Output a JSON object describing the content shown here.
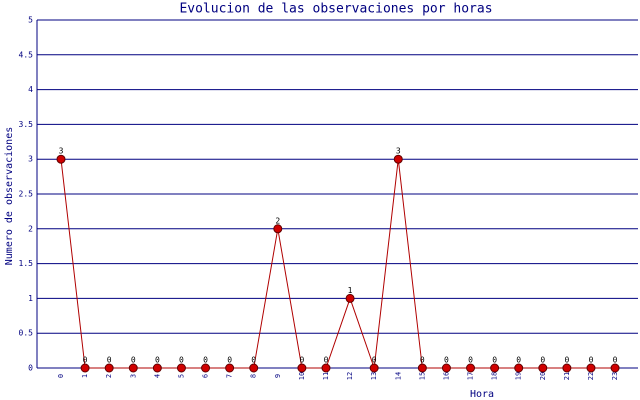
{
  "chart_data": {
    "type": "line",
    "title": "Evolucion de las observaciones por horas",
    "x_label": "Hora",
    "y_label": "Numero de observaciones",
    "categories": [
      "0",
      "1",
      "2",
      "3",
      "4",
      "5",
      "6",
      "7",
      "8",
      "9",
      "10",
      "11",
      "12",
      "13",
      "14",
      "15",
      "16",
      "17",
      "18",
      "19",
      "20",
      "21",
      "22",
      "23"
    ],
    "values": [
      3,
      0,
      0,
      0,
      0,
      0,
      0,
      0,
      0,
      2,
      0,
      0,
      1,
      0,
      3,
      0,
      0,
      0,
      0,
      0,
      0,
      0,
      0,
      0
    ],
    "color": "#b00000",
    "marker_color": "#d00000",
    "ylim": [
      0,
      5
    ],
    "yticks": [
      0,
      0.5,
      1,
      1.5,
      2,
      2.5,
      3,
      3.5,
      4,
      4.5,
      5
    ],
    "grid": true
  }
}
